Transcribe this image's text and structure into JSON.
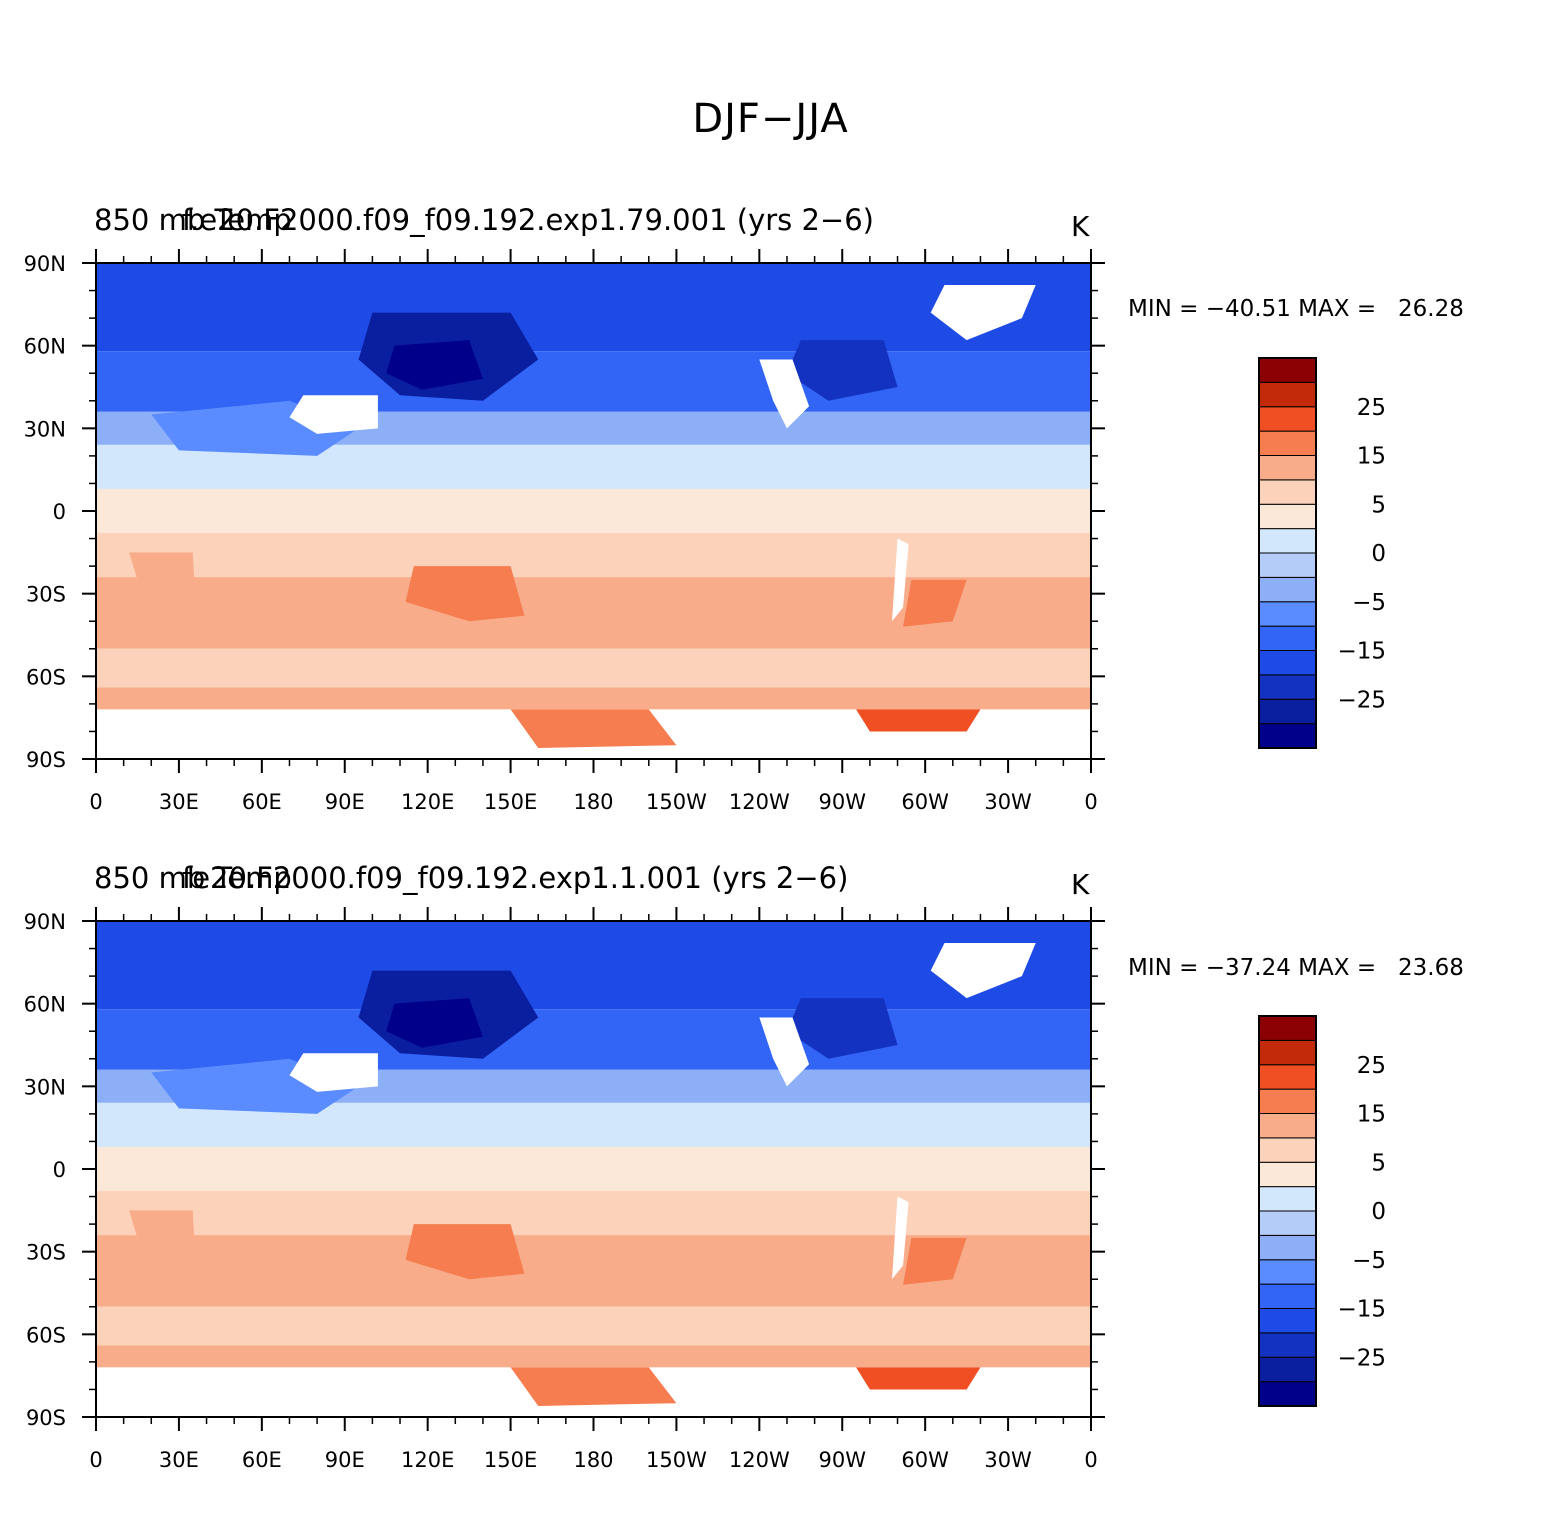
{
  "title": "DJF−JJA",
  "panels": [
    {
      "variable": "850 mb Temp",
      "case": "f.e20.F2000.f09_f09.192.exp1.79.001 (yrs 2−6)",
      "units": "K",
      "min_label": "MIN =",
      "min": "−40.51",
      "max_label": "MAX =",
      "max": "26.28"
    },
    {
      "variable": "850 mb Temp",
      "case": "fe20.F2000.f09_f09.192.exp1.1.001 (yrs 2−6)",
      "units": "K",
      "min_label": "MIN =",
      "min": "−37.24",
      "max_label": "MAX =",
      "max": "23.68"
    }
  ],
  "colorbar": {
    "colors": [
      "#00008b",
      "#0a1ea0",
      "#1432c0",
      "#1e4be6",
      "#3264f5",
      "#5a8cff",
      "#8caff7",
      "#b4cdf8",
      "#d2e6fc",
      "#fbe8d8",
      "#fcd2ba",
      "#f8ac8a",
      "#f57d4f",
      "#f04f23",
      "#c32a0a",
      "#8b0000"
    ],
    "labels": [
      "−25",
      "−15",
      "−5",
      "0",
      "5",
      "15",
      "25"
    ]
  },
  "map": {
    "lat_labels": [
      "90N",
      "60N",
      "30N",
      "0",
      "30S",
      "60S",
      "90S"
    ],
    "lon_labels": [
      "0",
      "30E",
      "60E",
      "90E",
      "120E",
      "150E",
      "180",
      "150W",
      "120W",
      "90W",
      "60W",
      "30W",
      "0"
    ]
  }
}
